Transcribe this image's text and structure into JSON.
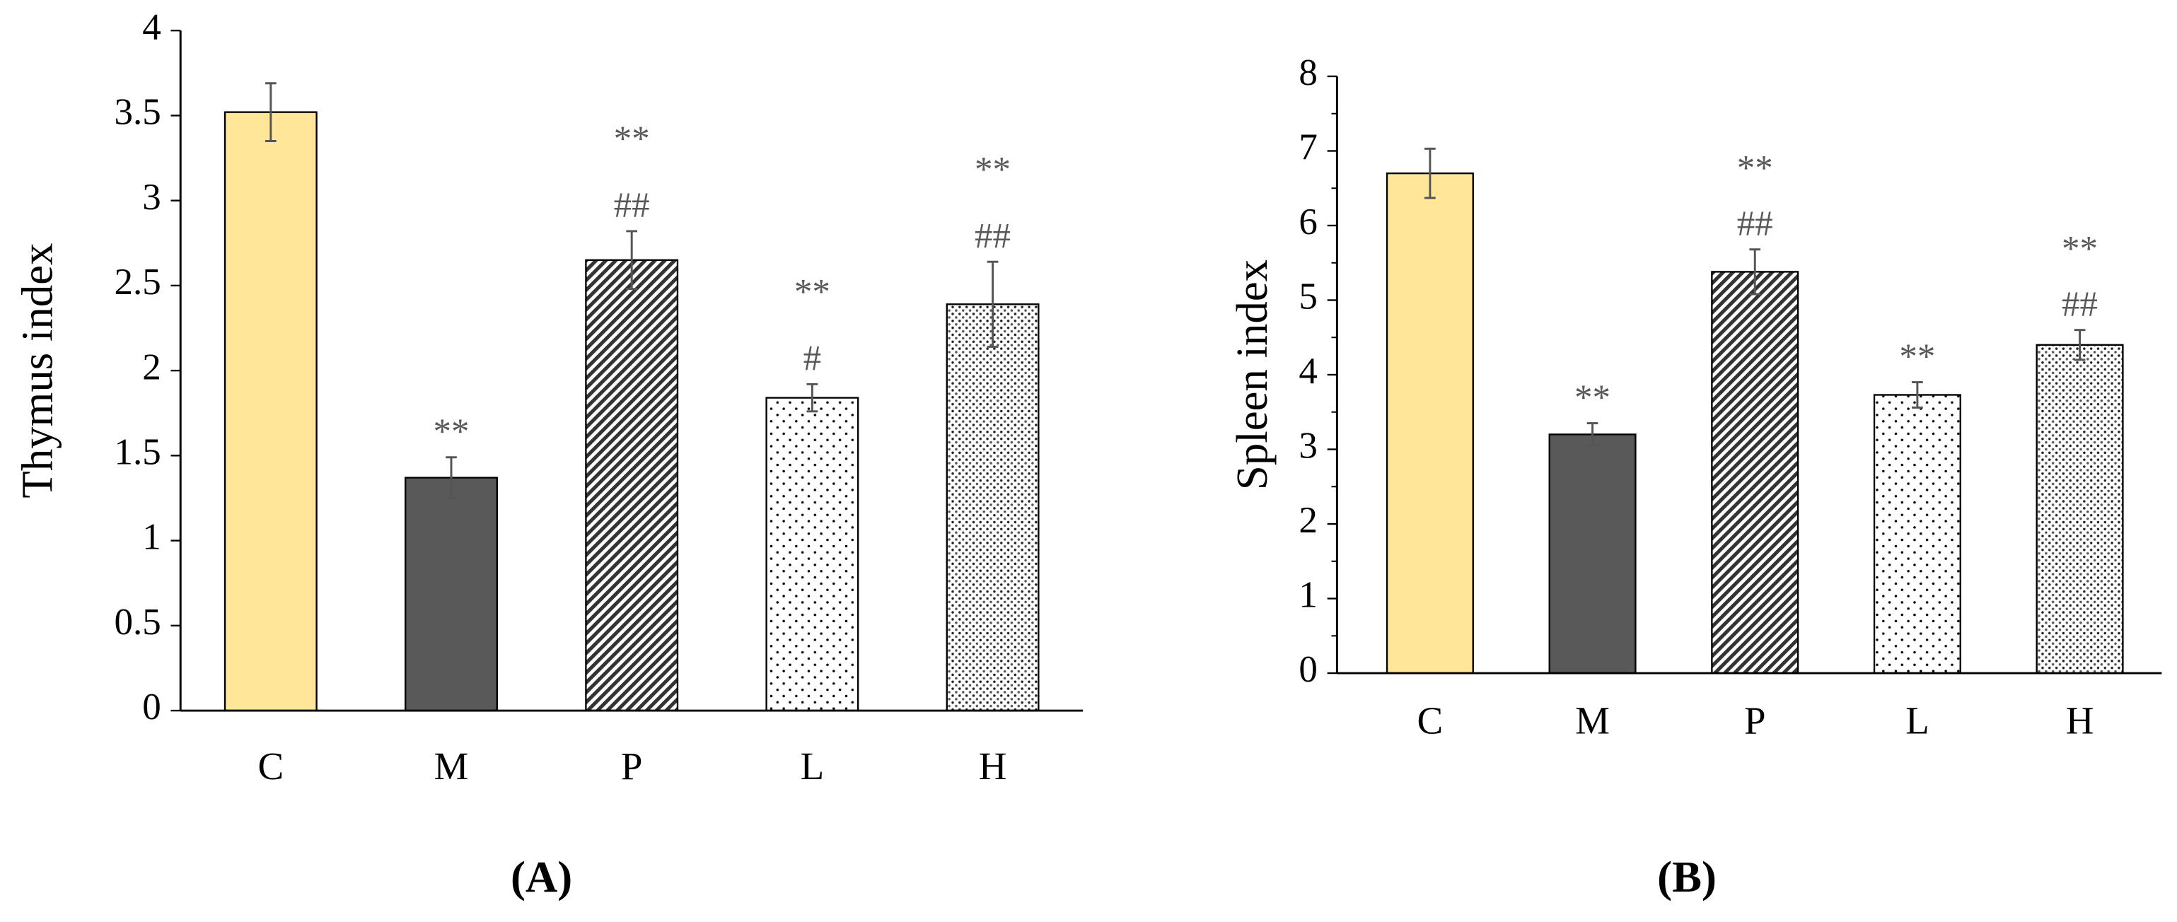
{
  "chart_data": [
    {
      "type": "bar",
      "panel_label": "(A)",
      "y_label": "Thymus index",
      "categories": [
        "C",
        "M",
        "P",
        "L",
        "H"
      ],
      "values": [
        3.52,
        1.37,
        2.65,
        1.84,
        2.39
      ],
      "errors": [
        0.17,
        0.12,
        0.17,
        0.08,
        0.25
      ],
      "annotations": [
        [],
        [
          "**"
        ],
        [
          "**",
          "##"
        ],
        [
          "**",
          "#"
        ],
        [
          "**",
          "##"
        ]
      ],
      "colors": [
        "#ffe699",
        "#595959",
        "#ffffff",
        "#ffffff",
        "#ffffff"
      ],
      "patterns": [
        null,
        null,
        "diagonal",
        "sparse-dots",
        "dense-dots"
      ],
      "ylim": [
        0,
        4
      ],
      "yticks": [
        0,
        0.5,
        1,
        1.5,
        2,
        2.5,
        3,
        3.5,
        4
      ],
      "minor_ticks": false
    },
    {
      "type": "bar",
      "panel_label": "(B)",
      "y_label": "Spleen index",
      "categories": [
        "C",
        "M",
        "P",
        "L",
        "H"
      ],
      "values": [
        6.7,
        3.2,
        5.38,
        3.73,
        4.4
      ],
      "errors": [
        0.33,
        0.15,
        0.3,
        0.17,
        0.2
      ],
      "annotations": [
        [],
        [
          "**"
        ],
        [
          "**",
          "##"
        ],
        [
          "**"
        ],
        [
          "**",
          "##"
        ]
      ],
      "colors": [
        "#ffe699",
        "#595959",
        "#ffffff",
        "#ffffff",
        "#ffffff"
      ],
      "patterns": [
        null,
        null,
        "diagonal",
        "sparse-dots",
        "dense-dots"
      ],
      "ylim": [
        0,
        8
      ],
      "yticks": [
        0,
        1,
        2,
        3,
        4,
        5,
        6,
        7,
        8
      ],
      "minor_ticks": true
    }
  ]
}
